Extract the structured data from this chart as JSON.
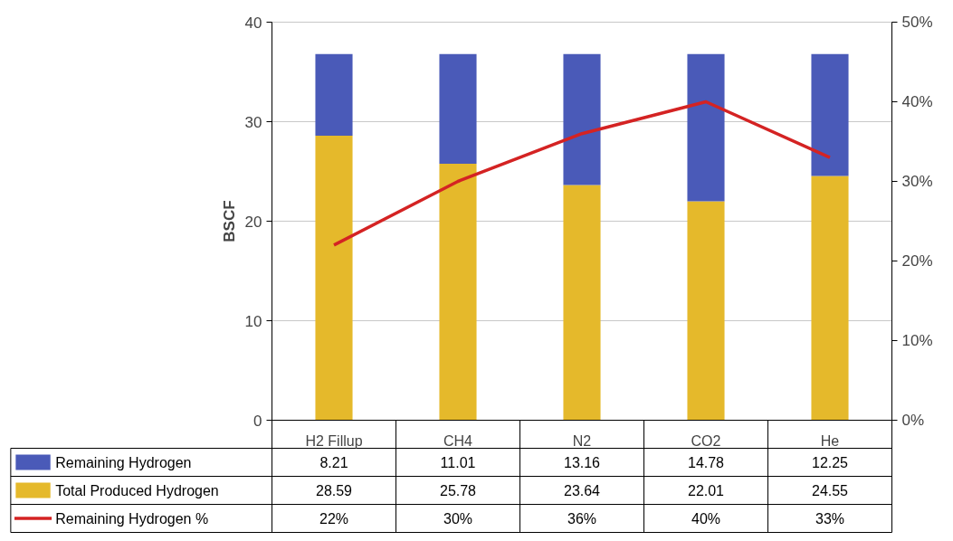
{
  "chart_data": {
    "type": "bar",
    "stacked": true,
    "ylabel": "BSCF",
    "categories": [
      "H2 Fillup",
      "CH4",
      "N2",
      "CO2",
      "He"
    ],
    "series": [
      {
        "name": "Total Produced Hydrogen",
        "color": "#e5b92b",
        "values": [
          28.59,
          25.78,
          23.64,
          22.01,
          24.55
        ]
      },
      {
        "name": "Remaining Hydrogen",
        "color": "#4a5ab8",
        "values": [
          8.21,
          11.01,
          13.16,
          14.78,
          12.25
        ]
      },
      {
        "name": "Remaining Hydrogen %",
        "type": "line",
        "axis": "y2",
        "color": "#d42323",
        "values": [
          22,
          30,
          36,
          40,
          33
        ],
        "value_labels": [
          "22%",
          "30%",
          "36%",
          "40%",
          "33%"
        ]
      }
    ],
    "ylim": [
      0,
      40
    ],
    "yticks": [
      0,
      10,
      20,
      30,
      40
    ],
    "y2lim": [
      0,
      50
    ],
    "y2ticks": [
      {
        "value": 0,
        "label": "0%"
      },
      {
        "value": 10,
        "label": "10%"
      },
      {
        "value": 20,
        "label": "20%"
      },
      {
        "value": 30,
        "label": "30%"
      },
      {
        "value": 40,
        "label": "40%"
      },
      {
        "value": 50,
        "label": "50%"
      }
    ],
    "grid": "y",
    "legend": "bottom",
    "data_labels": true,
    "marker": "none",
    "line_style": "solid"
  }
}
